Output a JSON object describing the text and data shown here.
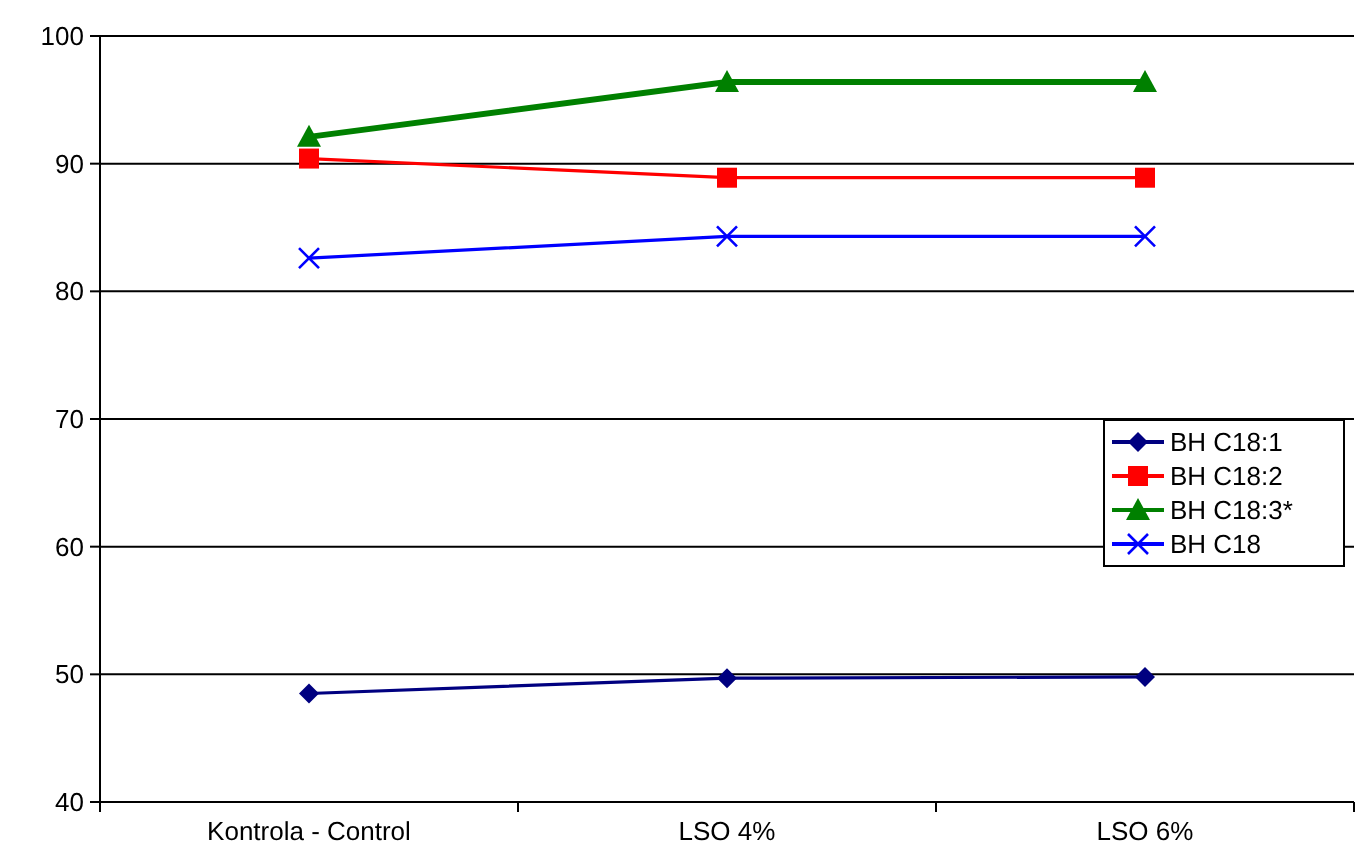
{
  "chart_data": {
    "type": "line",
    "categories": [
      "Kontrola - Control",
      "LSO 4%",
      "LSO 6%"
    ],
    "series": [
      {
        "name": "BH C18:1",
        "color": "#000080",
        "marker": "diamond",
        "values": [
          48.5,
          49.7,
          49.8
        ]
      },
      {
        "name": "BH C18:2",
        "color": "#ff0000",
        "marker": "square",
        "values": [
          90.4,
          88.9,
          88.9
        ]
      },
      {
        "name": "BH C18:3*",
        "color": "#008000",
        "marker": "triangle",
        "values": [
          92.1,
          96.4,
          96.4
        ]
      },
      {
        "name": "BH C18",
        "color": "#0000ff",
        "marker": "cross",
        "values": [
          82.6,
          84.3,
          84.3
        ]
      }
    ],
    "ylim": [
      40,
      100
    ],
    "yticks": [
      40,
      50,
      60,
      70,
      80,
      90,
      100
    ],
    "grid": "y",
    "legend": "right"
  }
}
